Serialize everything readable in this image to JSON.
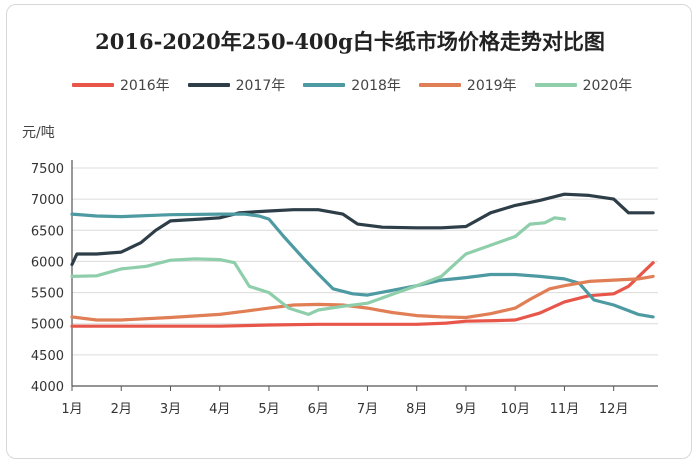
{
  "chart_data": {
    "type": "line",
    "title": "2016-2020年250-400g白卡纸市场价格走势对比图",
    "ylabel": "元/吨",
    "xlabel": "",
    "ylim": [
      4000,
      7500
    ],
    "yticks": [
      "4000",
      "4500",
      "5000",
      "5500",
      "6000",
      "6500",
      "7000",
      "7500"
    ],
    "categories": [
      "1月",
      "2月",
      "3月",
      "4月",
      "5月",
      "6月",
      "7月",
      "8月",
      "9月",
      "10月",
      "11月",
      "12月"
    ],
    "grid": true,
    "legend_position": "top",
    "series": [
      {
        "name": "2016年",
        "color": "#e8564a",
        "x": [
          1,
          1.5,
          2,
          3,
          4,
          5,
          6,
          7,
          8,
          8.6,
          9,
          9.6,
          10,
          10.5,
          11,
          11.5,
          12,
          12.3,
          12.8
        ],
        "values": [
          4960,
          4960,
          4960,
          4960,
          4960,
          4980,
          4990,
          4990,
          4990,
          5010,
          5040,
          5050,
          5060,
          5170,
          5350,
          5450,
          5480,
          5600,
          5980
        ]
      },
      {
        "name": "2017年",
        "color": "#2e3e48",
        "x": [
          1,
          1.1,
          1.5,
          2,
          2.4,
          2.7,
          3,
          3.6,
          4,
          4.4,
          5,
          5.5,
          6,
          6.5,
          6.8,
          7.3,
          8,
          8.5,
          9,
          9.5,
          10,
          10.5,
          11,
          11.5,
          12,
          12.3,
          12.8
        ],
        "values": [
          5950,
          6120,
          6120,
          6150,
          6300,
          6500,
          6650,
          6680,
          6700,
          6780,
          6810,
          6830,
          6830,
          6760,
          6600,
          6550,
          6540,
          6540,
          6560,
          6780,
          6900,
          6980,
          7080,
          7060,
          7000,
          6780,
          6780
        ]
      },
      {
        "name": "2018年",
        "color": "#4e9aa2",
        "x": [
          1,
          1.5,
          2,
          3,
          4,
          4.5,
          4.8,
          5,
          5.3,
          5.7,
          6,
          6.3,
          6.7,
          7,
          7.4,
          8,
          8.5,
          9,
          9.5,
          10,
          10.5,
          11,
          11.3,
          11.6,
          12,
          12.5,
          12.8
        ],
        "values": [
          6760,
          6730,
          6720,
          6750,
          6760,
          6760,
          6730,
          6680,
          6400,
          6050,
          5800,
          5560,
          5480,
          5460,
          5520,
          5610,
          5700,
          5740,
          5790,
          5790,
          5760,
          5720,
          5650,
          5380,
          5300,
          5150,
          5110
        ]
      },
      {
        "name": "2019年",
        "color": "#e07e55",
        "x": [
          1,
          1.5,
          2,
          3,
          4,
          4.5,
          5,
          5.5,
          6,
          6.5,
          7,
          7.5,
          8,
          8.5,
          9,
          9.5,
          10,
          10.3,
          10.7,
          11,
          11.5,
          12,
          12.5,
          12.8
        ],
        "values": [
          5110,
          5060,
          5060,
          5100,
          5150,
          5200,
          5250,
          5300,
          5310,
          5300,
          5250,
          5180,
          5130,
          5110,
          5100,
          5160,
          5250,
          5390,
          5560,
          5610,
          5680,
          5700,
          5720,
          5760
        ]
      },
      {
        "name": "2020年",
        "color": "#8fceab",
        "x": [
          1,
          1.5,
          2,
          2.5,
          3,
          3.5,
          4,
          4.3,
          4.6,
          5,
          5.4,
          5.8,
          6,
          6.5,
          7,
          7.5,
          8,
          8.5,
          9,
          9.5,
          10,
          10.3,
          10.6,
          10.8,
          11
        ],
        "values": [
          5760,
          5770,
          5880,
          5920,
          6020,
          6040,
          6030,
          5980,
          5600,
          5500,
          5250,
          5150,
          5220,
          5280,
          5330,
          5470,
          5610,
          5760,
          6120,
          6260,
          6400,
          6600,
          6620,
          6700,
          6680
        ]
      }
    ]
  }
}
